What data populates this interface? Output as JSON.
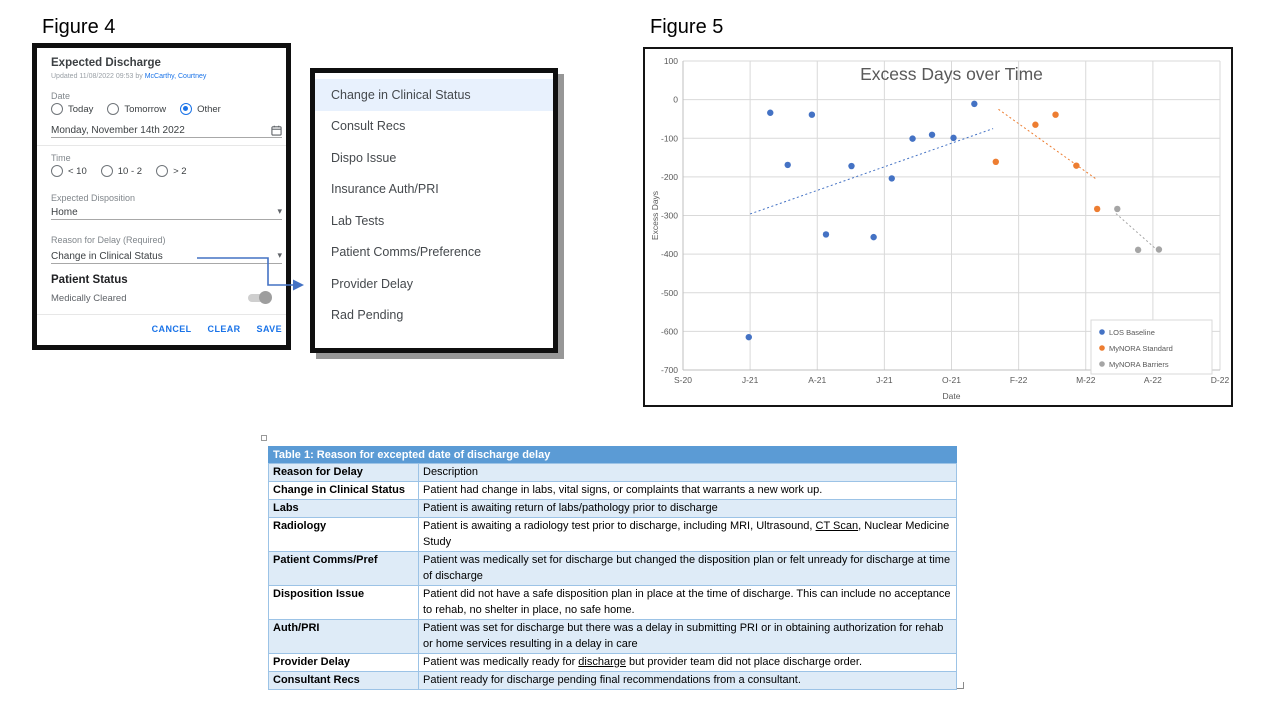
{
  "colors": {
    "accent_blue": "#1A73E8",
    "panel_border": "#0F0F0F",
    "table_header_bg": "#5B9BD5",
    "table_band_bg": "#DEEBF7",
    "table_border": "#9CC3E6",
    "series_blue": "#4472C4",
    "series_orange": "#ED7D31",
    "series_gray": "#A5A5A5",
    "arrow_blue": "#4472C4",
    "chart_text": "#595959"
  },
  "figure4": {
    "label": "Figure 4",
    "form": {
      "title": "Expected Discharge",
      "updated_prefix": "Updated 11/08/2022 09:53 by",
      "updated_by": "McCarthy, Courtney",
      "date_label": "Date",
      "date_options": [
        "Today",
        "Tomorrow",
        "Other"
      ],
      "date_selected": "Other",
      "date_value": "Monday, November 14th 2022",
      "time_label": "Time",
      "time_options": [
        "< 10",
        "10 - 2",
        "> 2"
      ],
      "time_selected": "",
      "disposition_label": "Expected Disposition",
      "disposition_value": "Home",
      "reason_label": "Reason for Delay (Required)",
      "reason_value": "Change in Clinical Status",
      "patient_status_label": "Patient Status",
      "medically_cleared_label": "Medically Cleared",
      "medically_cleared_on": false,
      "buttons": {
        "cancel": "CANCEL",
        "clear": "CLEAR",
        "save": "SAVE"
      }
    },
    "dropdown": {
      "selected": "Change in Clinical Status",
      "items": [
        "Change in Clinical Status",
        "Consult Recs",
        "Dispo Issue",
        "Insurance Auth/PRI",
        "Lab Tests",
        "Patient Comms/Preference",
        "Provider Delay",
        "Rad Pending"
      ]
    }
  },
  "figure5": {
    "label": "Figure 5"
  },
  "chart_data": {
    "type": "scatter",
    "title": "Excess Days over Time",
    "xlabel": "Date",
    "ylabel": "Excess Days",
    "x_tick_labels": [
      "S-20",
      "J-21",
      "A-21",
      "J-21",
      "O-21",
      "F-22",
      "M-22",
      "A-22",
      "D-22"
    ],
    "x_units": "tick-index units: 0 = S-20 ... 8 = D-22",
    "y_ticks": [
      100,
      0,
      -100,
      -200,
      -300,
      -400,
      -500,
      -600,
      -700
    ],
    "ylim": [
      -700,
      100
    ],
    "grid": true,
    "legend_position": "inside-bottom-right",
    "series": [
      {
        "name": "LOS Baseline",
        "color": "#4472C4",
        "points": [
          [
            0.98,
            -615
          ],
          [
            1.3,
            -34
          ],
          [
            1.56,
            -169
          ],
          [
            1.92,
            -39
          ],
          [
            2.13,
            -349
          ],
          [
            2.51,
            -172
          ],
          [
            2.84,
            -356
          ],
          [
            3.11,
            -204
          ],
          [
            3.42,
            -101
          ],
          [
            3.71,
            -91
          ],
          [
            4.03,
            -99
          ],
          [
            4.34,
            -11
          ]
        ],
        "trend": [
          [
            1.0,
            -296
          ],
          [
            4.62,
            -75
          ]
        ]
      },
      {
        "name": "MyNORA Standard",
        "color": "#ED7D31",
        "points": [
          [
            4.66,
            -161
          ],
          [
            5.25,
            -65
          ],
          [
            5.55,
            -39
          ],
          [
            5.86,
            -171
          ],
          [
            6.17,
            -283
          ]
        ],
        "trend": [
          [
            4.7,
            -25
          ],
          [
            6.15,
            -205
          ]
        ]
      },
      {
        "name": "MyNORA Barriers",
        "color": "#A5A5A5",
        "points": [
          [
            6.47,
            -283
          ],
          [
            6.78,
            -389
          ],
          [
            7.09,
            -388
          ]
        ],
        "trend": [
          [
            6.45,
            -295
          ],
          [
            7.1,
            -395
          ]
        ]
      }
    ]
  },
  "table": {
    "title": "Table 1: Reason for excepted date of discharge delay",
    "header": {
      "reason": "Reason for Delay",
      "desc": "Description"
    },
    "rows": [
      {
        "reason": "Change in Clinical Status",
        "desc": "Patient had change in labs, vital signs, or complaints that warrants a new work up."
      },
      {
        "reason": "Labs",
        "desc": "Patient is awaiting return of labs/pathology prior to discharge"
      },
      {
        "reason": "Radiology",
        "desc": "Patient is awaiting a radiology test prior to discharge, including MRI, Ultrasound, [u]CT Scan[/u], Nuclear Medicine Study"
      },
      {
        "reason": "Patient Comms/Pref",
        "desc": "Patient was medically set for discharge but changed the disposition plan or felt unready for discharge at time of discharge"
      },
      {
        "reason": "Disposition Issue",
        "desc": "Patient did not have a safe disposition plan in place at the time of discharge. This can include no acceptance to rehab, no shelter in place, no safe home."
      },
      {
        "reason": "Auth/PRI",
        "desc": "Patient was set for discharge but there was a delay in submitting PRI or in obtaining authorization for rehab or home services resulting in a delay in care"
      },
      {
        "reason": "Provider Delay",
        "desc": "Patient was medically ready for [u]discharge[/u] but provider team did not place discharge order."
      },
      {
        "reason": "Consultant Recs",
        "desc": "Patient ready for discharge pending final recommendations from a consultant."
      }
    ]
  }
}
